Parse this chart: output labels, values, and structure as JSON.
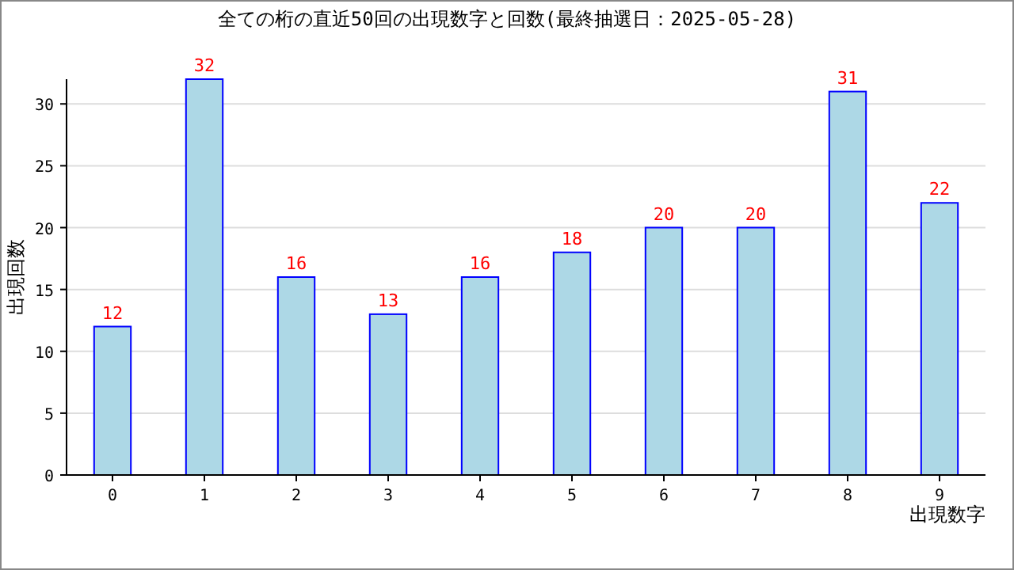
{
  "chart_data": {
    "type": "bar",
    "title": "全ての桁の直近50回の出現数字と回数(最終抽選日：2025-05-28)",
    "xlabel": "出現数字",
    "ylabel": "出現回数",
    "categories": [
      "0",
      "1",
      "2",
      "3",
      "4",
      "5",
      "6",
      "7",
      "8",
      "9"
    ],
    "values": [
      12,
      32,
      16,
      13,
      16,
      18,
      20,
      20,
      31,
      22
    ],
    "color": "#add8e6",
    "ylim": [
      0,
      32
    ],
    "yticks": [
      0,
      5,
      10,
      15,
      20,
      25,
      30
    ],
    "grid": "y",
    "data_labels": true
  }
}
